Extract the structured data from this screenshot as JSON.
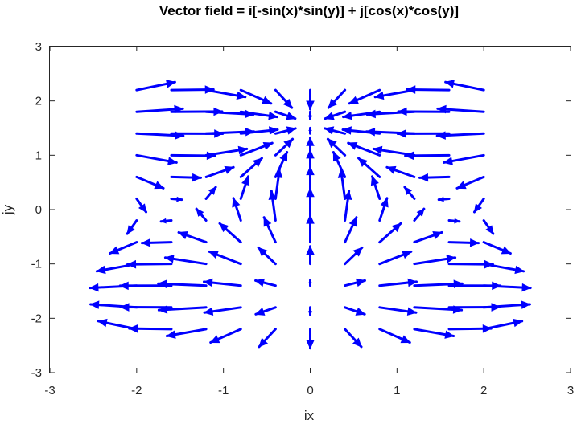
{
  "chart_data": {
    "type": "quiver",
    "title": "Vector field = i[-sin(x)*sin(y)] + j[cos(x)*cos(y)]",
    "xlabel": "ix",
    "ylabel": "jy",
    "xlim": [
      -3,
      3
    ],
    "ylim": [
      -3,
      3
    ],
    "xticks": [
      "-3",
      "-2",
      "-1",
      "0",
      "1",
      "2",
      "3"
    ],
    "yticks": [
      "-3",
      "-2",
      "-1",
      "0",
      "1",
      "2",
      "3"
    ],
    "grid": false,
    "color": "#0000ff",
    "x_range": [
      -2,
      2
    ],
    "y_range": [
      -2.2,
      2
    ],
    "grid_spacing": 0.4,
    "u_formula": "-sin(x)*sin(y)",
    "v_formula": "cos(x)*cos(y)"
  }
}
